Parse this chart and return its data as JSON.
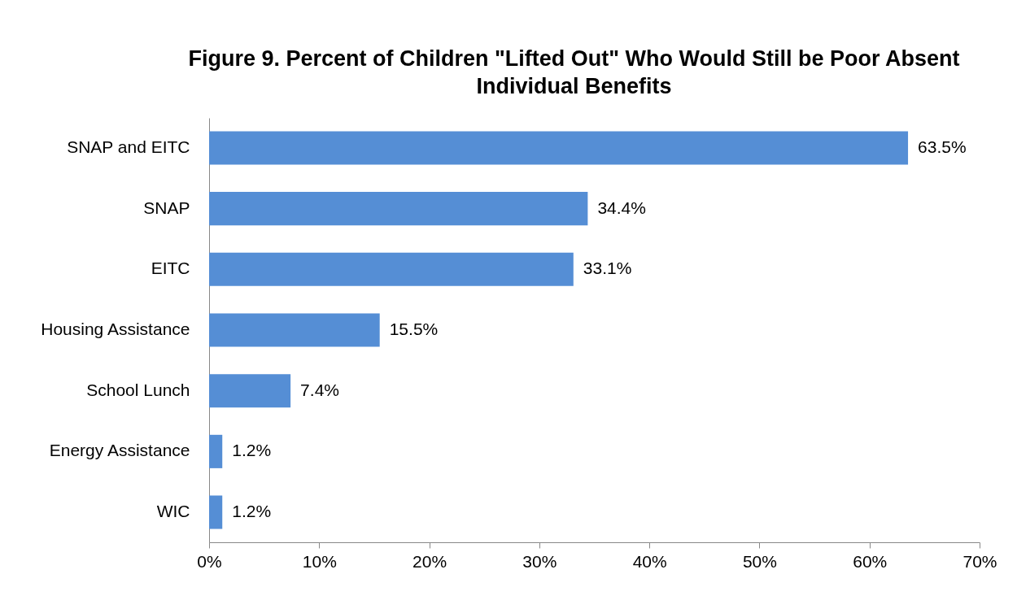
{
  "chart_data": {
    "type": "bar",
    "orientation": "horizontal",
    "title": "Figure 9. Percent of Children \"Lifted Out\" Who Would Still be Poor Absent Individual Benefits",
    "categories": [
      "SNAP and EITC",
      "SNAP",
      "EITC",
      "Housing Assistance",
      "School Lunch",
      "Energy Assistance",
      "WIC"
    ],
    "values": [
      63.5,
      34.4,
      33.1,
      15.5,
      7.4,
      1.2,
      1.2
    ],
    "value_labels": [
      "63.5%",
      "34.4%",
      "33.1%",
      "15.5%",
      "7.4%",
      "1.2%",
      "1.2%"
    ],
    "color": "#558ed5",
    "xlim": [
      0,
      70
    ],
    "xticks": [
      {
        "value": 0,
        "label": "0%"
      },
      {
        "value": 10,
        "label": "10%"
      },
      {
        "value": 20,
        "label": "20%"
      },
      {
        "value": 30,
        "label": "30%"
      },
      {
        "value": 40,
        "label": "40%"
      },
      {
        "value": 50,
        "label": "50%"
      },
      {
        "value": 60,
        "label": "60%"
      },
      {
        "value": 70,
        "label": "70%"
      }
    ],
    "grid": false
  }
}
